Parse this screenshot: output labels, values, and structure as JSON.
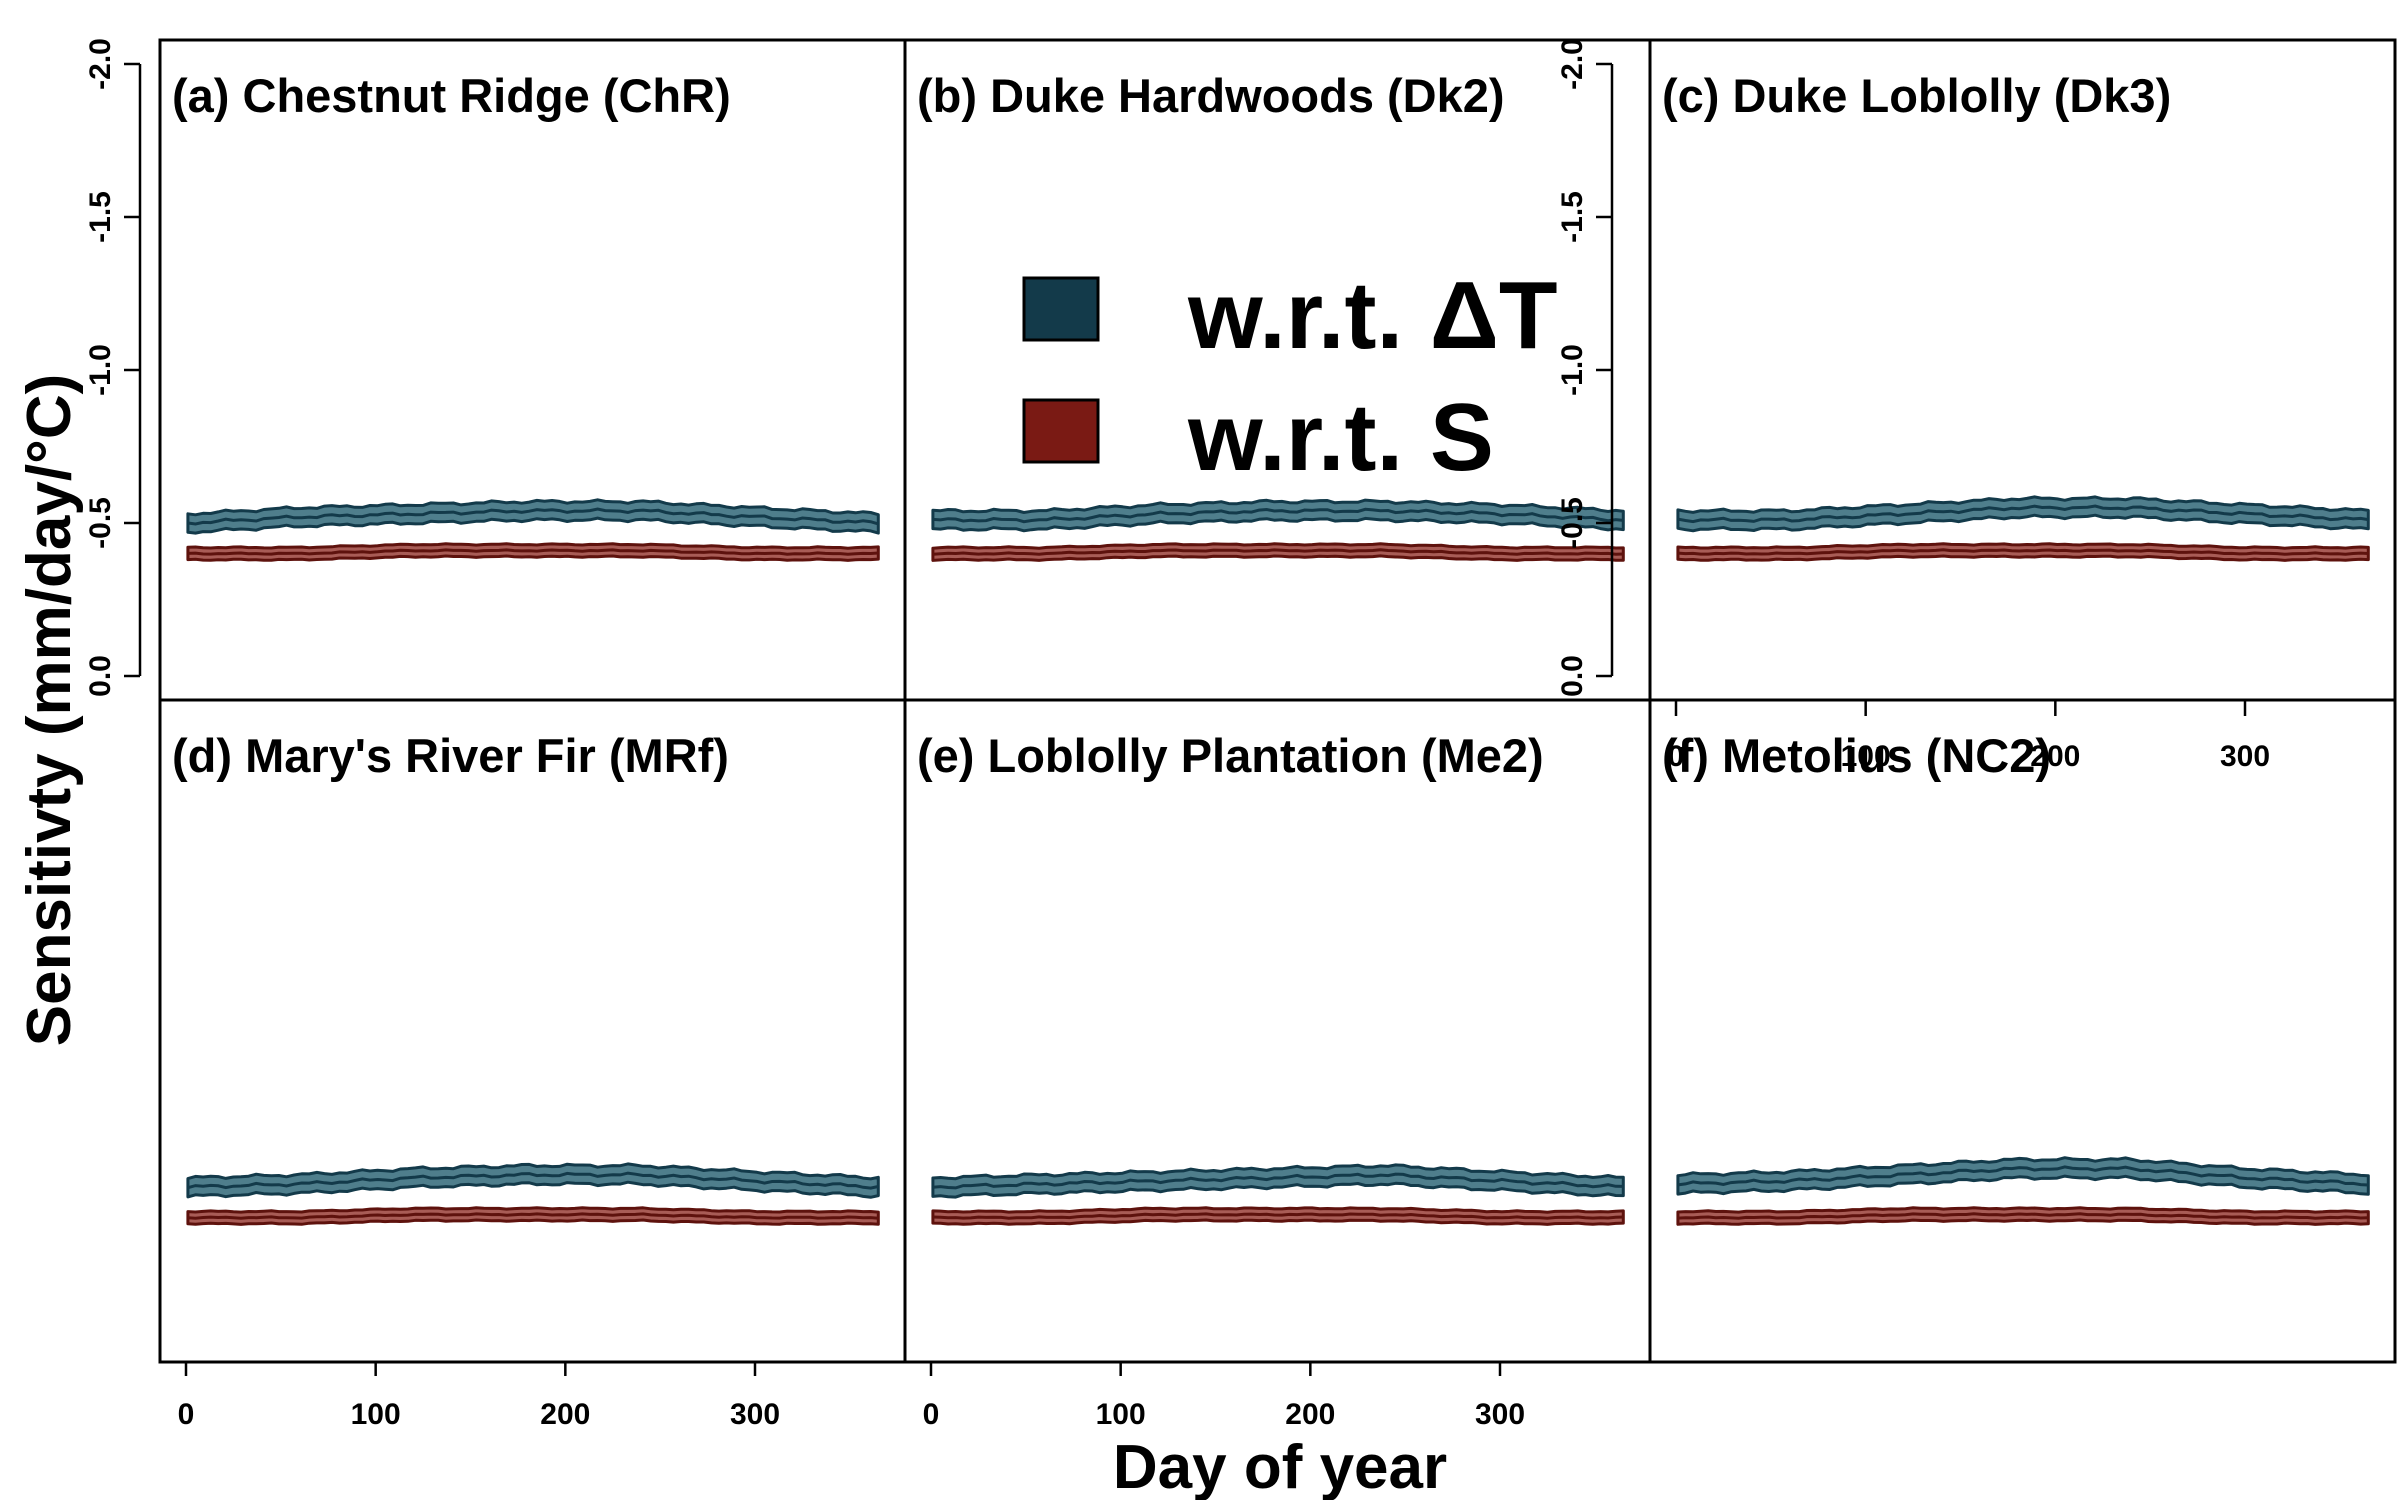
{
  "chart_data": {
    "type": "area",
    "ylabel": "Sensitivty (mm/day/°C)",
    "xlabel": "Day of year",
    "ylim": [
      0.0,
      -2.0
    ],
    "y_axis_reversed": true,
    "y_ticks": [
      "0.0",
      "-0.5",
      "-1.0",
      "-1.5",
      "-2.0"
    ],
    "xlim": [
      1,
      365
    ],
    "x_ticks": [
      "0",
      "100",
      "200",
      "300"
    ],
    "grid": false,
    "legend": {
      "placement": "top-center",
      "entries": [
        {
          "label": "w.r.t. ΔT",
          "color": "#133a4a"
        },
        {
          "label": "w.r.t. S",
          "color": "#7a1a14"
        }
      ]
    },
    "colors": {
      "dT_fill": "#4f7e8c",
      "dT_edge": "#133a4a",
      "S_fill": "#a85c56",
      "S_edge": "#5e120d"
    },
    "panels": [
      {
        "title": "(a) Chestnut Ridge (ChR)",
        "x": [
          1,
          60,
          120,
          180,
          240,
          300,
          365
        ],
        "series": [
          {
            "name": "w.r.t. ΔT",
            "mean": [
              -0.5,
              -0.52,
              -0.53,
              -0.54,
              -0.54,
              -0.52,
              -0.5
            ],
            "band": 0.03
          },
          {
            "name": "w.r.t. S",
            "mean": [
              -0.4,
              -0.4,
              -0.41,
              -0.41,
              -0.41,
              -0.4,
              -0.4
            ],
            "band": 0.02
          }
        ]
      },
      {
        "title": "(b) Duke Hardwoods (Dk2)",
        "x": [
          1,
          60,
          120,
          180,
          240,
          300,
          365
        ],
        "series": [
          {
            "name": "w.r.t. ΔT",
            "mean": [
              -0.51,
              -0.51,
              -0.53,
              -0.54,
              -0.54,
              -0.53,
              -0.51
            ],
            "band": 0.03
          },
          {
            "name": "w.r.t. S",
            "mean": [
              -0.4,
              -0.4,
              -0.41,
              -0.41,
              -0.41,
              -0.4,
              -0.4
            ],
            "band": 0.02
          }
        ]
      },
      {
        "title": "(c) Duke Loblolly (Dk3)",
        "x": [
          1,
          60,
          120,
          180,
          240,
          300,
          365
        ],
        "series": [
          {
            "name": "w.r.t. ΔT",
            "mean": [
              -0.51,
              -0.51,
              -0.53,
              -0.55,
              -0.55,
              -0.53,
              -0.51
            ],
            "band": 0.03
          },
          {
            "name": "w.r.t. S",
            "mean": [
              -0.4,
              -0.4,
              -0.41,
              -0.41,
              -0.41,
              -0.4,
              -0.4
            ],
            "band": 0.02
          }
        ]
      },
      {
        "title": "(d) Mary's River Fir (MRf)",
        "x": [
          1,
          60,
          120,
          180,
          240,
          300,
          365
        ],
        "series": [
          {
            "name": "w.r.t. ΔT",
            "mean": [
              -0.5,
              -0.51,
              -0.53,
              -0.54,
              -0.54,
              -0.52,
              -0.5
            ],
            "band": 0.03
          },
          {
            "name": "w.r.t. S",
            "mean": [
              -0.4,
              -0.4,
              -0.41,
              -0.41,
              -0.41,
              -0.4,
              -0.4
            ],
            "band": 0.02
          }
        ]
      },
      {
        "title": "(e) Loblolly Plantation (Me2)",
        "x": [
          1,
          60,
          120,
          180,
          240,
          300,
          365
        ],
        "series": [
          {
            "name": "w.r.t. ΔT",
            "mean": [
              -0.5,
              -0.51,
              -0.52,
              -0.53,
              -0.54,
              -0.52,
              -0.5
            ],
            "band": 0.03
          },
          {
            "name": "w.r.t. S",
            "mean": [
              -0.4,
              -0.4,
              -0.41,
              -0.41,
              -0.41,
              -0.4,
              -0.4
            ],
            "band": 0.02
          }
        ]
      },
      {
        "title": "(f) Metolius (NC2)",
        "x": [
          1,
          60,
          120,
          180,
          240,
          300,
          365
        ],
        "series": [
          {
            "name": "w.r.t. ΔT",
            "mean": [
              -0.51,
              -0.52,
              -0.54,
              -0.56,
              -0.56,
              -0.53,
              -0.51
            ],
            "band": 0.03
          },
          {
            "name": "w.r.t. S",
            "mean": [
              -0.4,
              -0.4,
              -0.41,
              -0.41,
              -0.41,
              -0.4,
              -0.4
            ],
            "band": 0.02
          }
        ]
      }
    ]
  }
}
